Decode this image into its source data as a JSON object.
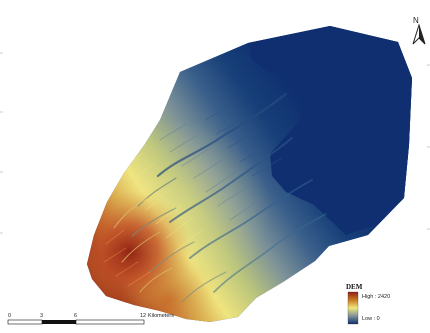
{
  "north": {
    "label": "N",
    "icon": "north-arrow-icon"
  },
  "legend": {
    "title": "DEM",
    "high_label": "High : 2420",
    "low_label": "Low : 0",
    "colors": {
      "high": "#8f1f12",
      "mid_high": "#c97a24",
      "mid": "#f0e87c",
      "mid_low": "#7f9298",
      "low": "#0f2f70"
    }
  },
  "scale_bar": {
    "ticks": [
      "0",
      "3",
      "6",
      "12"
    ],
    "unit": "Kilometers"
  }
}
